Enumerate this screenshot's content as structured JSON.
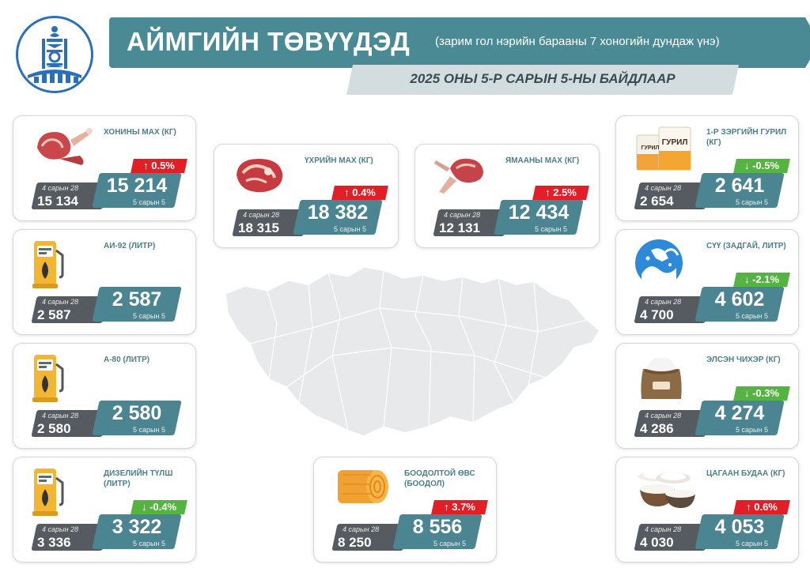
{
  "header": {
    "title": "АЙМГИЙН ТӨВҮҮДЭД",
    "subtitle": "(зарим гол нэрийн барааны 7 хоногийн дундаж үнэ)",
    "date": "2025 ОНЫ 5-Р САРЫН 5-НЫ БАЙДЛААР"
  },
  "colors": {
    "teal": "#4a8a95",
    "dark": "#555b60",
    "up": "#e21e26",
    "down": "#55b342"
  },
  "products": [
    {
      "name": "ХОНИНЫ МАХ (КГ)",
      "icon": "mutton-icon",
      "prev_label": "4 сарын 28",
      "prev": "15 134",
      "cur": "15 214",
      "cur_label": "5 сарын 5",
      "change": "↑ 0.5%",
      "dir": "up"
    },
    {
      "name": "АИ-92 (ЛИТР)",
      "icon": "fuel-pump-icon",
      "prev_label": "4 сарын 28",
      "prev": "2 587",
      "cur": "2 587",
      "cur_label": "5 сарын 5",
      "change": "",
      "dir": ""
    },
    {
      "name": "А-80 (ЛИТР)",
      "icon": "fuel-pump-icon",
      "prev_label": "4 сарын 28",
      "prev": "2 580",
      "cur": "2 580",
      "cur_label": "5 сарын 5",
      "change": "",
      "dir": ""
    },
    {
      "name": "ДИЗЕЛИЙН ТҮЛШ (ЛИТР)",
      "icon": "fuel-pump-icon",
      "prev_label": "4 сарын 28",
      "prev": "3 336",
      "cur": "3 322",
      "cur_label": "5 сарын 5",
      "change": "↓ -0.4%",
      "dir": "down"
    },
    {
      "name": "ҮХРИЙН МАХ (КГ)",
      "icon": "beef-icon",
      "prev_label": "4 сарын 28",
      "prev": "18 315",
      "cur": "18 382",
      "cur_label": "5 сарын 5",
      "change": "↑ 0.4%",
      "dir": "up"
    },
    {
      "name": "ЯМААНЫ МАХ (КГ)",
      "icon": "goat-meat-icon",
      "prev_label": "4 сарын 28",
      "prev": "12 131",
      "cur": "12 434",
      "cur_label": "5 сарын 5",
      "change": "↑ 2.5%",
      "dir": "up"
    },
    {
      "name": "1-Р ЗЭРГИЙН ГУРИЛ (КГ)",
      "icon": "flour-icon",
      "icon_text": "ГУРИЛ",
      "prev_label": "4 сарын 28",
      "prev": "2 654",
      "cur": "2 641",
      "cur_label": "5 сарын 5",
      "change": "↓ -0.5%",
      "dir": "down"
    },
    {
      "name": "СҮҮ (ЗАДГАЙ, ЛИТР)",
      "icon": "milk-icon",
      "prev_label": "4 сарын 28",
      "prev": "4 700",
      "cur": "4 602",
      "cur_label": "5 сарын 5",
      "change": "↓ -2.1%",
      "dir": "down"
    },
    {
      "name": "ЭЛСЭН ЧИХЭР (КГ)",
      "icon": "sugar-sack-icon",
      "prev_label": "4 сарын 28",
      "prev": "4 286",
      "cur": "4 274",
      "cur_label": "5 сарын 5",
      "change": "↓ -0.3%",
      "dir": "down"
    },
    {
      "name": "ЦАГААН БУДАА (КГ)",
      "icon": "rice-bowl-icon",
      "prev_label": "4 сарын 28",
      "prev": "4 030",
      "cur": "4 053",
      "cur_label": "5 сарын 5",
      "change": "↑ 0.6%",
      "dir": "up"
    },
    {
      "name": "БООДОЛТОЙ ӨВС (БООДОЛ)",
      "icon": "hay-bale-icon",
      "prev_label": "4 сарын 28",
      "prev": "8 250",
      "cur": "8 556",
      "cur_label": "5 сарын 5",
      "change": "↑ 3.7%",
      "dir": "up"
    }
  ]
}
